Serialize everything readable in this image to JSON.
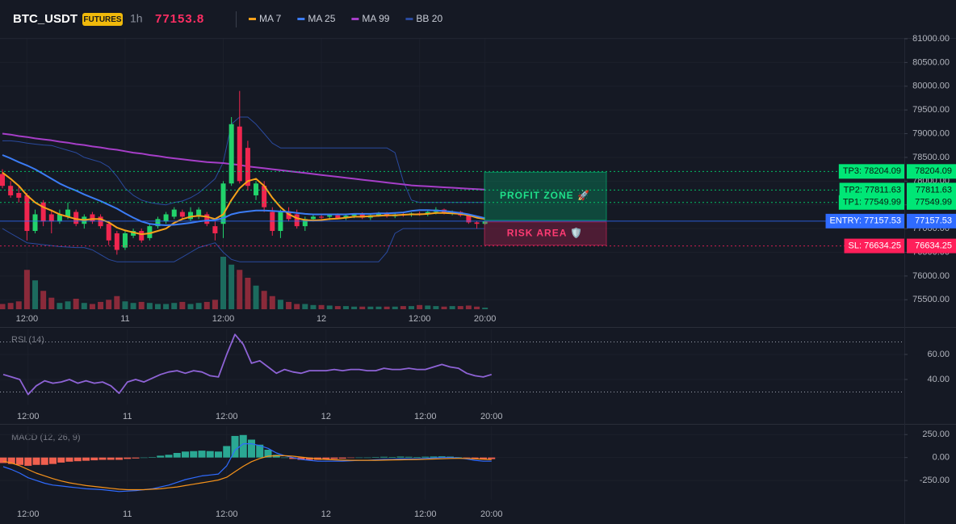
{
  "chart_data": [
    {
      "type": "candlestick",
      "title": "BTC_USDT",
      "badge": "FUTURES",
      "interval": "1h",
      "last_price": 77153.8,
      "last_price_color": "#ff2e63",
      "categories": [
        null,
        null,
        null,
        "12:00",
        null,
        null,
        null,
        null,
        null,
        null,
        null,
        null,
        null,
        null,
        null,
        "11",
        null,
        null,
        null,
        null,
        null,
        null,
        null,
        null,
        null,
        null,
        null,
        "12:00",
        null,
        null,
        null,
        null,
        null,
        null,
        null,
        null,
        null,
        null,
        null,
        "12",
        null,
        null,
        null,
        null,
        null,
        null,
        null,
        null,
        null,
        null,
        null,
        "12:00",
        null,
        null,
        null,
        null,
        null,
        null,
        null,
        "20:00"
      ],
      "open": [
        78150,
        77900,
        77750,
        77700,
        76950,
        77550,
        77300,
        77150,
        77250,
        77350,
        77100,
        77300,
        77250,
        77100,
        76900,
        76600,
        76850,
        76950,
        76800,
        77050,
        77150,
        77250,
        77350,
        77200,
        77250,
        77300,
        77050,
        77100,
        77950,
        79150,
        78700,
        77700,
        77900,
        77350,
        76950,
        77350,
        77300,
        77050,
        77200,
        77250,
        77250,
        77280,
        77220,
        77270,
        77300,
        77230,
        77280,
        77320,
        77260,
        77300,
        77290,
        77320,
        77300,
        77350,
        77400,
        77330,
        77350,
        77280,
        77130,
        77100
      ],
      "high": [
        78250,
        78000,
        77900,
        77750,
        77400,
        77600,
        77400,
        77400,
        77550,
        77400,
        77300,
        77350,
        77300,
        77150,
        76950,
        76950,
        77000,
        77000,
        77100,
        77250,
        77350,
        77450,
        77400,
        77450,
        77450,
        77350,
        77150,
        78000,
        79350,
        79900,
        78850,
        78000,
        78000,
        77450,
        77400,
        77450,
        77400,
        77250,
        77300,
        77300,
        77300,
        77320,
        77300,
        77320,
        77340,
        77300,
        77350,
        77350,
        77330,
        77340,
        77340,
        77360,
        77380,
        77450,
        77420,
        77380,
        77370,
        77300,
        77160,
        77160
      ],
      "low": [
        77850,
        77650,
        77550,
        76750,
        76900,
        77050,
        76900,
        77100,
        77200,
        77050,
        77000,
        77100,
        77000,
        76650,
        76450,
        76550,
        76800,
        76700,
        76750,
        77000,
        77100,
        77200,
        77200,
        77150,
        77200,
        77050,
        76750,
        76800,
        77900,
        77950,
        77800,
        77600,
        77350,
        76850,
        76800,
        77150,
        77000,
        76950,
        77150,
        77200,
        77180,
        77200,
        77180,
        77220,
        77200,
        77180,
        77250,
        77230,
        77220,
        77250,
        77250,
        77270,
        77260,
        77300,
        77300,
        77280,
        77250,
        77100,
        77000,
        77080
      ],
      "close": [
        77900,
        77700,
        77650,
        76950,
        77300,
        77150,
        77150,
        77300,
        77400,
        77100,
        77250,
        77150,
        77050,
        76750,
        76550,
        76900,
        76950,
        76750,
        77050,
        77200,
        77300,
        77400,
        77250,
        77350,
        77400,
        77100,
        76900,
        77950,
        79200,
        78000,
        77900,
        77950,
        77450,
        76950,
        77350,
        77200,
        77050,
        77200,
        77250,
        77230,
        77280,
        77220,
        77270,
        77300,
        77230,
        77280,
        77320,
        77260,
        77300,
        77290,
        77320,
        77300,
        77350,
        77400,
        77330,
        77350,
        77280,
        77130,
        77100,
        77150
      ],
      "volume": [
        10,
        12,
        15,
        75,
        55,
        35,
        22,
        12,
        15,
        20,
        12,
        10,
        14,
        18,
        25,
        15,
        12,
        14,
        12,
        10,
        10,
        12,
        14,
        10,
        12,
        14,
        18,
        100,
        85,
        75,
        60,
        45,
        35,
        25,
        18,
        14,
        10,
        10,
        8,
        8,
        7,
        6,
        6,
        5,
        5,
        5,
        5,
        5,
        5,
        6,
        6,
        8,
        7,
        6,
        5,
        6,
        6,
        7,
        5,
        3
      ],
      "up_color": "#22d36b",
      "down_color": "#f0264f",
      "volume_up_color": "#1c6b5e",
      "volume_down_color": "#8a2a3a",
      "series": [
        {
          "name": "MA 7",
          "color": "#f7a11a",
          "values": [
            78180,
            78050,
            77900,
            77700,
            77550,
            77450,
            77380,
            77300,
            77250,
            77200,
            77180,
            77200,
            77200,
            77130,
            77020,
            76960,
            76920,
            76880,
            76900,
            76950,
            77000,
            77120,
            77200,
            77250,
            77270,
            77250,
            77200,
            77300,
            77600,
            77850,
            78000,
            78050,
            77900,
            77650,
            77450,
            77300,
            77220,
            77180,
            77170,
            77180,
            77200,
            77210,
            77230,
            77250,
            77250,
            77260,
            77270,
            77280,
            77280,
            77290,
            77300,
            77300,
            77310,
            77330,
            77330,
            77320,
            77310,
            77280,
            77230,
            77200
          ]
        },
        {
          "name": "MA 25",
          "color": "#3b7cf5",
          "values": [
            78550,
            78480,
            78400,
            78330,
            78250,
            78150,
            78050,
            77950,
            77870,
            77800,
            77720,
            77650,
            77580,
            77500,
            77420,
            77320,
            77230,
            77150,
            77100,
            77080,
            77070,
            77080,
            77100,
            77120,
            77150,
            77170,
            77180,
            77220,
            77300,
            77340,
            77360,
            77380,
            77380,
            77370,
            77360,
            77350,
            77330,
            77310,
            77300,
            77300,
            77300,
            77300,
            77300,
            77310,
            77310,
            77310,
            77320,
            77320,
            77330,
            77340,
            77370,
            77390,
            77390,
            77380,
            77370,
            77350,
            77330,
            77300,
            77260,
            77220
          ]
        },
        {
          "name": "MA 99",
          "color": "#a63ec8",
          "values": [
            79000,
            78980,
            78950,
            78930,
            78900,
            78880,
            78860,
            78830,
            78810,
            78780,
            78760,
            78730,
            78710,
            78680,
            78660,
            78630,
            78600,
            78580,
            78550,
            78530,
            78500,
            78480,
            78460,
            78440,
            78420,
            78400,
            78390,
            78380,
            78360,
            78340,
            78310,
            78290,
            78270,
            78250,
            78230,
            78210,
            78190,
            78170,
            78150,
            78130,
            78110,
            78090,
            78070,
            78050,
            78030,
            78010,
            77990,
            77970,
            77950,
            77930,
            77910,
            77900,
            77890,
            77880,
            77870,
            77860,
            77850,
            77840,
            77830,
            77820
          ]
        }
      ],
      "bands": {
        "name": "BB 20",
        "color": "#2a4a9e",
        "upper": [
          78850,
          78850,
          78830,
          78800,
          78780,
          78760,
          78750,
          78700,
          78650,
          78600,
          78500,
          78450,
          78400,
          78300,
          78100,
          77850,
          77700,
          77600,
          77550,
          77520,
          77500,
          77550,
          77580,
          77650,
          77750,
          77900,
          78050,
          78400,
          79200,
          79350,
          79350,
          79200,
          79000,
          78800,
          78700,
          78700,
          78700,
          78700,
          78700,
          78700,
          78700,
          78700,
          78700,
          78700,
          78700,
          78700,
          78700,
          78700,
          78600,
          78000,
          77600,
          77550,
          77550,
          77550,
          77550,
          77550,
          77550,
          77550,
          77550,
          77550
        ],
        "lower": [
          77000,
          76900,
          76800,
          76700,
          76680,
          76660,
          76640,
          76620,
          76610,
          76600,
          76600,
          76550,
          76450,
          76350,
          76300,
          76300,
          76300,
          76300,
          76300,
          76300,
          76300,
          76300,
          76400,
          76500,
          76600,
          76650,
          76700,
          76500,
          76350,
          76300,
          76300,
          76300,
          76300,
          76300,
          76300,
          76300,
          76300,
          76300,
          76300,
          76300,
          76300,
          76300,
          76300,
          76300,
          76300,
          76300,
          76300,
          76500,
          76900,
          77000,
          77000,
          77000,
          77000,
          77000,
          77000,
          77000,
          77000,
          77000,
          77000,
          77000
        ]
      },
      "ylim": [
        75300,
        81000
      ],
      "yticks": [
        {
          "value": 75500,
          "label": "75500.00"
        },
        {
          "value": 76000,
          "label": "76000.00"
        },
        {
          "value": 76500,
          "label": "76500.00"
        },
        {
          "value": 77000,
          "label": "77000.00"
        },
        {
          "value": 77500,
          "label": "77500.00"
        },
        {
          "value": 78000,
          "label": "78000.00"
        },
        {
          "value": 78500,
          "label": "78500.00"
        },
        {
          "value": 79000,
          "label": "79000.00"
        },
        {
          "value": 79500,
          "label": "79500.00"
        },
        {
          "value": 80000,
          "label": "80000.00"
        },
        {
          "value": 80500,
          "label": "80500.00"
        },
        {
          "value": 81000,
          "label": "81000.00"
        }
      ],
      "levels": [
        {
          "label": "TP3: 78204.09",
          "value": 78204.09,
          "color": "#00e676",
          "text_color": "#0b1a12",
          "style": "dotted"
        },
        {
          "label": "TP2: 77811.63",
          "value": 77811.63,
          "color": "#00e676",
          "text_color": "#0b1a12",
          "style": "dotted"
        },
        {
          "label": "TP1: 77549.99",
          "value": 77549.99,
          "color": "#00e676",
          "text_color": "#0b1a12",
          "style": "dotted"
        },
        {
          "label": "ENTRY: 77157.53",
          "value": 77157.53,
          "color": "#2f6bff",
          "text_color": "#ffffff",
          "style": "solid"
        },
        {
          "label": "SL: 76634.25",
          "value": 76634.25,
          "color": "#ff1f5a",
          "text_color": "#ffffff",
          "style": "dotted"
        }
      ],
      "zones": [
        {
          "label": "PROFIT ZONE 🚀",
          "color": "#00c27a",
          "text_color": "#1fe08a"
        },
        {
          "label": "RISK AREA 🛡️",
          "color": "#e0245e",
          "text_color": "#ff3b73"
        }
      ]
    },
    {
      "type": "line",
      "title": "RSI (14)",
      "color": "#8e63d6",
      "values": [
        44,
        42,
        40,
        28,
        35,
        39,
        37,
        38,
        40,
        37,
        39,
        37,
        38,
        35,
        29,
        38,
        40,
        38,
        41,
        44,
        46,
        47,
        45,
        47,
        46,
        43,
        42,
        60,
        76,
        68,
        53,
        55,
        50,
        45,
        48,
        46,
        45,
        47,
        47,
        47,
        48,
        47,
        48,
        48,
        47,
        47,
        49,
        48,
        48,
        49,
        48,
        48,
        50,
        52,
        50,
        49,
        45,
        43,
        42,
        44
      ],
      "ylim": [
        20,
        80
      ],
      "yticks": [
        {
          "value": 60,
          "label": "60.00"
        },
        {
          "value": 40,
          "label": "40.00"
        }
      ],
      "bands": [
        70,
        30
      ]
    },
    {
      "type": "macd",
      "title": "MACD (12, 26, 9)",
      "series": [
        {
          "color": "#2f6bff",
          "values": [
            -100,
            -130,
            -170,
            -220,
            -250,
            -280,
            -300,
            -310,
            -320,
            -330,
            -340,
            -345,
            -350,
            -360,
            -370,
            -365,
            -360,
            -350,
            -340,
            -320,
            -300,
            -270,
            -240,
            -220,
            -200,
            -190,
            -180,
            -90,
            80,
            150,
            150,
            130,
            100,
            50,
            20,
            0,
            -20,
            -30,
            -40,
            -40,
            -40,
            -40,
            -35,
            -30,
            -30,
            -25,
            -20,
            -20,
            -15,
            -15,
            -15,
            -10,
            -5,
            0,
            0,
            -5,
            -15,
            -30,
            -40,
            -40
          ]
        },
        {
          "color": "#f7931a",
          "values": [
            -40,
            -60,
            -90,
            -130,
            -170,
            -200,
            -230,
            -255,
            -275,
            -290,
            -305,
            -315,
            -325,
            -335,
            -345,
            -350,
            -350,
            -350,
            -345,
            -340,
            -330,
            -320,
            -305,
            -290,
            -275,
            -260,
            -245,
            -215,
            -155,
            -95,
            -45,
            -10,
            15,
            20,
            20,
            15,
            5,
            -5,
            -15,
            -20,
            -25,
            -28,
            -30,
            -30,
            -30,
            -30,
            -28,
            -26,
            -25,
            -23,
            -21,
            -19,
            -16,
            -13,
            -10,
            -9,
            -10,
            -14,
            -19,
            -23
          ]
        }
      ],
      "histogram": {
        "up_color": "#2aa893",
        "down_color": "#f0604f",
        "values": [
          -60,
          -70,
          -80,
          -90,
          -80,
          -80,
          -70,
          -55,
          -45,
          -40,
          -35,
          -30,
          -25,
          -25,
          -25,
          -15,
          -10,
          0,
          5,
          20,
          30,
          50,
          65,
          70,
          75,
          70,
          65,
          125,
          235,
          245,
          195,
          140,
          85,
          30,
          0,
          -15,
          -25,
          -25,
          -25,
          -20,
          -15,
          -12,
          -5,
          0,
          0,
          5,
          8,
          6,
          10,
          8,
          6,
          9,
          11,
          13,
          10,
          4,
          -5,
          -16,
          -21,
          -17
        ]
      },
      "ylim": [
        -460,
        340
      ],
      "yticks": [
        {
          "value": 250,
          "label": "250.00"
        },
        {
          "value": 0,
          "label": "0.00"
        },
        {
          "value": -250,
          "label": "-250.00"
        }
      ]
    }
  ]
}
